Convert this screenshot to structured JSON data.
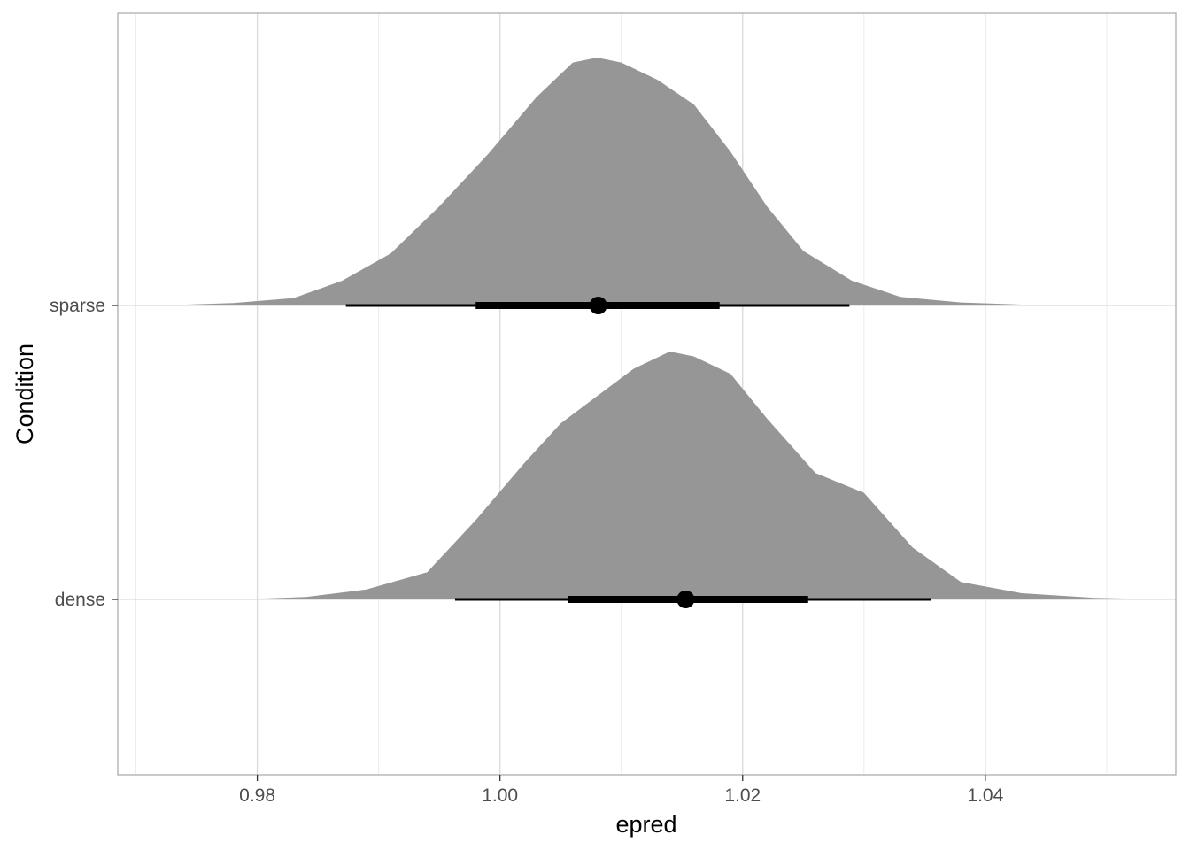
{
  "chart_data": {
    "type": "halfeye",
    "xlabel": "epred",
    "ylabel": "Condition",
    "xlim": [
      0.9685,
      1.0557
    ],
    "x_ticks": [
      0.98,
      1.0,
      1.02,
      1.04
    ],
    "x_tick_labels": [
      "0.98",
      "1.00",
      "1.02",
      "1.04"
    ],
    "grid": true,
    "colors": {
      "density": "#969696",
      "interval": "#000000",
      "grid": "#d9d9d9",
      "panel_border": "#adadad"
    },
    "categories": [
      "dense",
      "sparse"
    ],
    "series": [
      {
        "category": "sparse",
        "point": 1.0081,
        "interval_66": [
          0.998,
          1.0181
        ],
        "interval_95": [
          0.9873,
          1.0288
        ],
        "density": [
          [
            0.972,
            0.0
          ],
          [
            0.978,
            0.01
          ],
          [
            0.983,
            0.03
          ],
          [
            0.987,
            0.1
          ],
          [
            0.991,
            0.21
          ],
          [
            0.995,
            0.4
          ],
          [
            0.999,
            0.61
          ],
          [
            1.003,
            0.84
          ],
          [
            1.006,
            0.98
          ],
          [
            1.008,
            1.0
          ],
          [
            1.01,
            0.98
          ],
          [
            1.013,
            0.91
          ],
          [
            1.016,
            0.81
          ],
          [
            1.019,
            0.62
          ],
          [
            1.022,
            0.4
          ],
          [
            1.025,
            0.22
          ],
          [
            1.029,
            0.1
          ],
          [
            1.033,
            0.035
          ],
          [
            1.038,
            0.012
          ],
          [
            1.045,
            0.0
          ]
        ]
      },
      {
        "category": "dense",
        "point": 1.0153,
        "interval_66": [
          1.0056,
          1.0254
        ],
        "interval_95": [
          0.9963,
          1.0355
        ],
        "density": [
          [
            0.9785,
            0.0
          ],
          [
            0.984,
            0.01
          ],
          [
            0.989,
            0.04
          ],
          [
            0.994,
            0.11
          ],
          [
            0.998,
            0.32
          ],
          [
            1.002,
            0.55
          ],
          [
            1.005,
            0.71
          ],
          [
            1.008,
            0.82
          ],
          [
            1.011,
            0.93
          ],
          [
            1.014,
            1.0
          ],
          [
            1.016,
            0.98
          ],
          [
            1.019,
            0.91
          ],
          [
            1.022,
            0.73
          ],
          [
            1.026,
            0.51
          ],
          [
            1.03,
            0.43
          ],
          [
            1.034,
            0.21
          ],
          [
            1.038,
            0.07
          ],
          [
            1.043,
            0.025
          ],
          [
            1.049,
            0.006
          ],
          [
            1.055,
            0.0
          ]
        ]
      }
    ]
  }
}
